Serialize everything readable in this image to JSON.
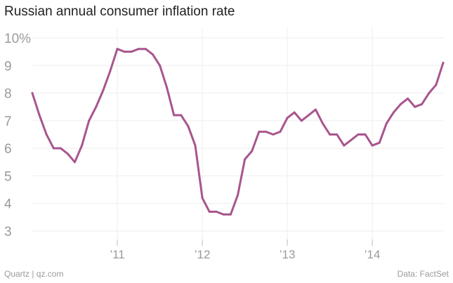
{
  "chart_data": {
    "type": "line",
    "title": "Russian annual consumer inflation rate",
    "source_left": "Quartz | qz.com",
    "source_right": "Data: FactSet",
    "xlabel": "",
    "ylabel": "",
    "ylim": [
      3,
      10
    ],
    "yticks": [
      {
        "value": 10,
        "label": "10%"
      },
      {
        "value": 9,
        "label": "9"
      },
      {
        "value": 8,
        "label": "8"
      },
      {
        "value": 7,
        "label": "7"
      },
      {
        "value": 6,
        "label": "6"
      },
      {
        "value": 5,
        "label": "5"
      },
      {
        "value": 4,
        "label": "4"
      },
      {
        "value": 3,
        "label": "3"
      }
    ],
    "xlim": [
      "2010-01",
      "2014-11"
    ],
    "xticks": [
      {
        "value": "2011-01",
        "label": "’11"
      },
      {
        "value": "2012-01",
        "label": "’12"
      },
      {
        "value": "2013-01",
        "label": "’13"
      },
      {
        "value": "2014-01",
        "label": "’14"
      }
    ],
    "grid": true,
    "line_color": "#a8558d",
    "series": [
      {
        "x": [
          "2010-01",
          "2010-02",
          "2010-03",
          "2010-04",
          "2010-05",
          "2010-06",
          "2010-07",
          "2010-08",
          "2010-09",
          "2010-10",
          "2010-11",
          "2010-12",
          "2011-01",
          "2011-02",
          "2011-03",
          "2011-04",
          "2011-05",
          "2011-06",
          "2011-07",
          "2011-08",
          "2011-09",
          "2011-10",
          "2011-11",
          "2011-12",
          "2012-01",
          "2012-02",
          "2012-03",
          "2012-04",
          "2012-05",
          "2012-06",
          "2012-07",
          "2012-08",
          "2012-09",
          "2012-10",
          "2012-11",
          "2012-12",
          "2013-01",
          "2013-02",
          "2013-03",
          "2013-04",
          "2013-05",
          "2013-06",
          "2013-07",
          "2013-08",
          "2013-09",
          "2013-10",
          "2013-11",
          "2013-12",
          "2014-01",
          "2014-02",
          "2014-03",
          "2014-04",
          "2014-05",
          "2014-06",
          "2014-07",
          "2014-08",
          "2014-09",
          "2014-10",
          "2014-11"
        ],
        "values": [
          8.0,
          7.2,
          6.5,
          6.0,
          6.0,
          5.8,
          5.5,
          6.1,
          7.0,
          7.5,
          8.1,
          8.8,
          9.6,
          9.5,
          9.5,
          9.6,
          9.6,
          9.4,
          9.0,
          8.2,
          7.2,
          7.2,
          6.8,
          6.1,
          4.2,
          3.7,
          3.7,
          3.6,
          3.6,
          4.3,
          5.6,
          5.9,
          6.6,
          6.6,
          6.5,
          6.6,
          7.1,
          7.3,
          7.0,
          7.2,
          7.4,
          6.9,
          6.5,
          6.5,
          6.1,
          6.3,
          6.5,
          6.5,
          6.1,
          6.2,
          6.9,
          7.3,
          7.6,
          7.8,
          7.5,
          7.6,
          8.0,
          8.3,
          9.1
        ]
      }
    ]
  }
}
